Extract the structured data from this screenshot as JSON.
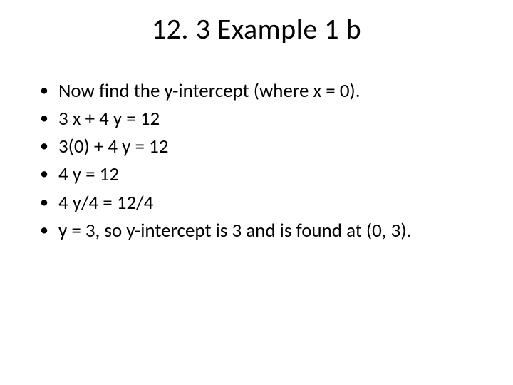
{
  "slide": {
    "title": "12. 3 Example 1 b",
    "bullets": [
      "Now find the y-intercept (where x = 0).",
      "3 x + 4 y = 12",
      "3(0) + 4 y = 12",
      "4 y = 12",
      "4 y/4 = 12/4",
      "y = 3, so y-intercept is 3 and is found at (0, 3)."
    ],
    "colors": {
      "background": "#ffffff",
      "text": "#000000"
    },
    "typography": {
      "title_fontsize": 40,
      "body_fontsize": 27,
      "font_family": "Calibri"
    }
  }
}
